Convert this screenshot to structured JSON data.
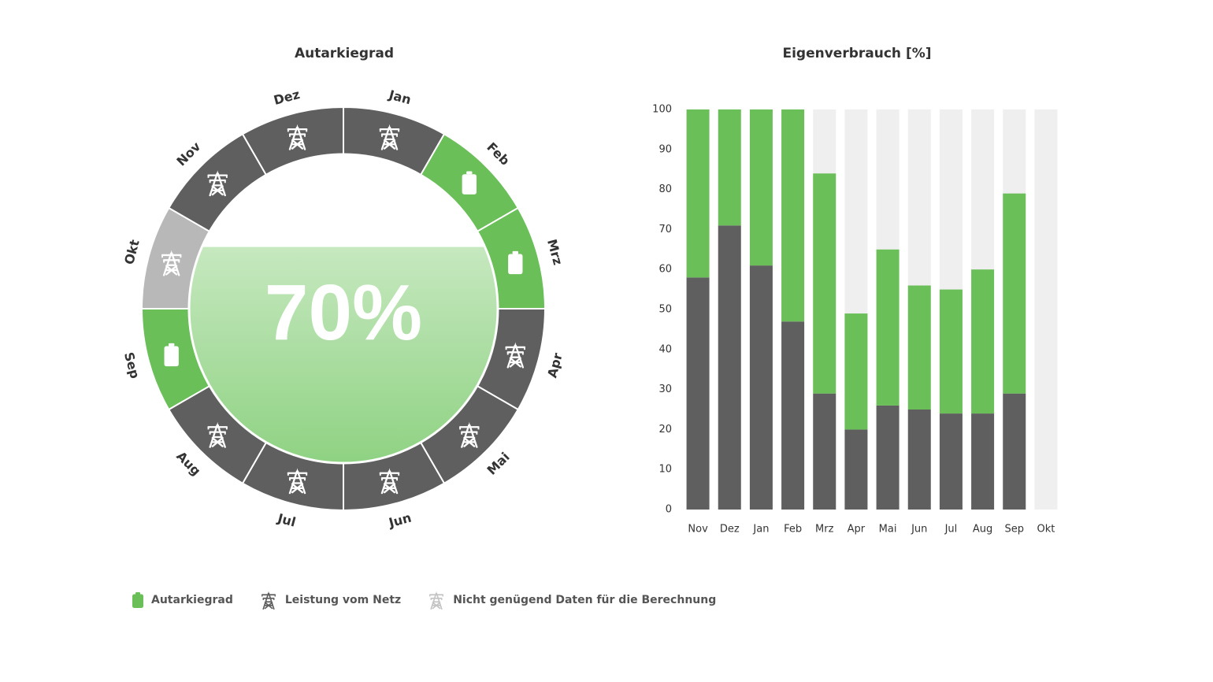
{
  "colors": {
    "green": "#6abf59",
    "dark_gray": "#5f5f5f",
    "light_gray": "#efefef",
    "insufficient": "#b8b8b8"
  },
  "chart_data": [
    {
      "type": "radial",
      "title": "Autarkiegrad",
      "center_value": "70%",
      "fill_fraction": 0.7,
      "months": [
        {
          "label": "Jan",
          "status": "grid"
        },
        {
          "label": "Feb",
          "status": "autarky"
        },
        {
          "label": "Mrz",
          "status": "autarky"
        },
        {
          "label": "Apr",
          "status": "grid"
        },
        {
          "label": "Mai",
          "status": "grid"
        },
        {
          "label": "Jun",
          "status": "grid"
        },
        {
          "label": "Jul",
          "status": "grid"
        },
        {
          "label": "Aug",
          "status": "grid"
        },
        {
          "label": "Sep",
          "status": "autarky"
        },
        {
          "label": "Okt",
          "status": "insufficient"
        },
        {
          "label": "Nov",
          "status": "grid"
        },
        {
          "label": "Dez",
          "status": "grid"
        }
      ]
    },
    {
      "type": "bar",
      "stacked": true,
      "title": "Eigenverbrauch [%]",
      "categories": [
        "Nov",
        "Dez",
        "Jan",
        "Feb",
        "Mrz",
        "Apr",
        "Mai",
        "Jun",
        "Jul",
        "Aug",
        "Sep",
        "Okt"
      ],
      "ylim": [
        0,
        100
      ],
      "yticks": [
        0,
        10,
        20,
        30,
        40,
        50,
        60,
        70,
        80,
        90,
        100
      ],
      "grid": false,
      "series": [
        {
          "values": [
            58,
            71,
            61,
            47,
            29,
            20,
            26,
            25,
            24,
            24,
            29,
            0
          ]
        },
        {
          "values": [
            42,
            29,
            39,
            53,
            55,
            29,
            39,
            31,
            31,
            36,
            50,
            0
          ]
        }
      ]
    }
  ],
  "legend": [
    {
      "label": "Autarkiegrad",
      "icon": "battery-icon"
    },
    {
      "label": "Leistung vom Netz",
      "icon": "pylon-icon"
    },
    {
      "label": "Nicht genügend Daten für die Berechnung",
      "icon": "pylon-icon"
    }
  ]
}
